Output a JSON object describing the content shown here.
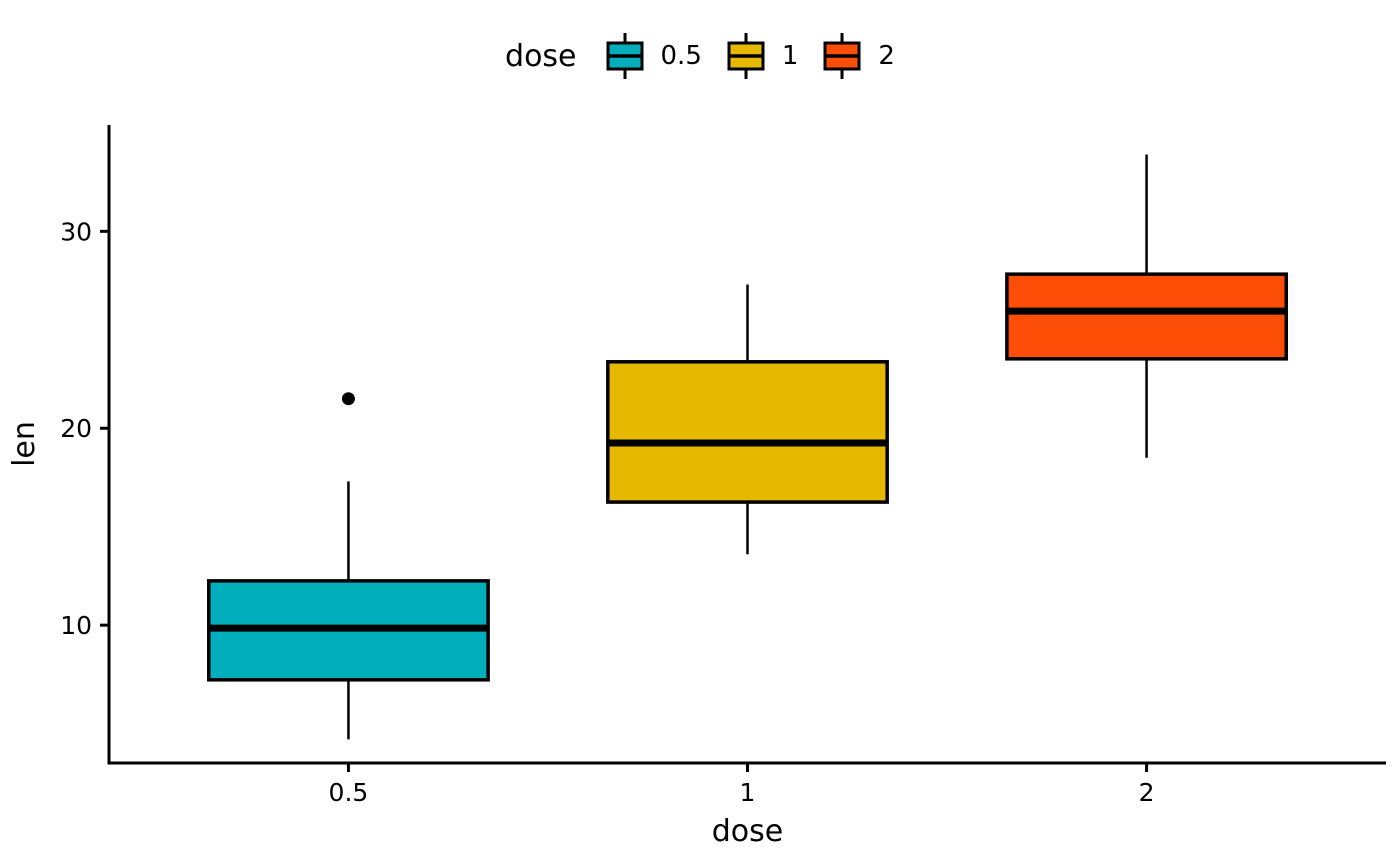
{
  "chart_data": {
    "type": "boxplot",
    "title": "",
    "xlabel": "dose",
    "ylabel": "len",
    "categories": [
      "0.5",
      "1",
      "2"
    ],
    "colors": [
      "#00AFBB",
      "#E7B800",
      "#FC4E07"
    ],
    "outline_color": "#000000",
    "legend": {
      "title": "dose",
      "position": "top",
      "labels": [
        "0.5",
        "1",
        "2"
      ]
    },
    "y_ticks": [
      10,
      20,
      30
    ],
    "y_tick_labels": [
      "10",
      "20",
      "30"
    ],
    "ylim": [
      3.0,
      35.4
    ],
    "series": [
      {
        "dose": "0.5",
        "whisker_low": 4.2,
        "q1": 7.225,
        "median": 9.85,
        "q3": 12.25,
        "whisker_high": 17.3,
        "outliers": [
          21.5
        ]
      },
      {
        "dose": "1",
        "whisker_low": 13.6,
        "q1": 16.25,
        "median": 19.25,
        "q3": 23.375,
        "whisker_high": 27.3,
        "outliers": []
      },
      {
        "dose": "2",
        "whisker_low": 18.5,
        "q1": 23.525,
        "median": 25.95,
        "q3": 27.825,
        "whisker_high": 33.9,
        "outliers": []
      }
    ]
  }
}
